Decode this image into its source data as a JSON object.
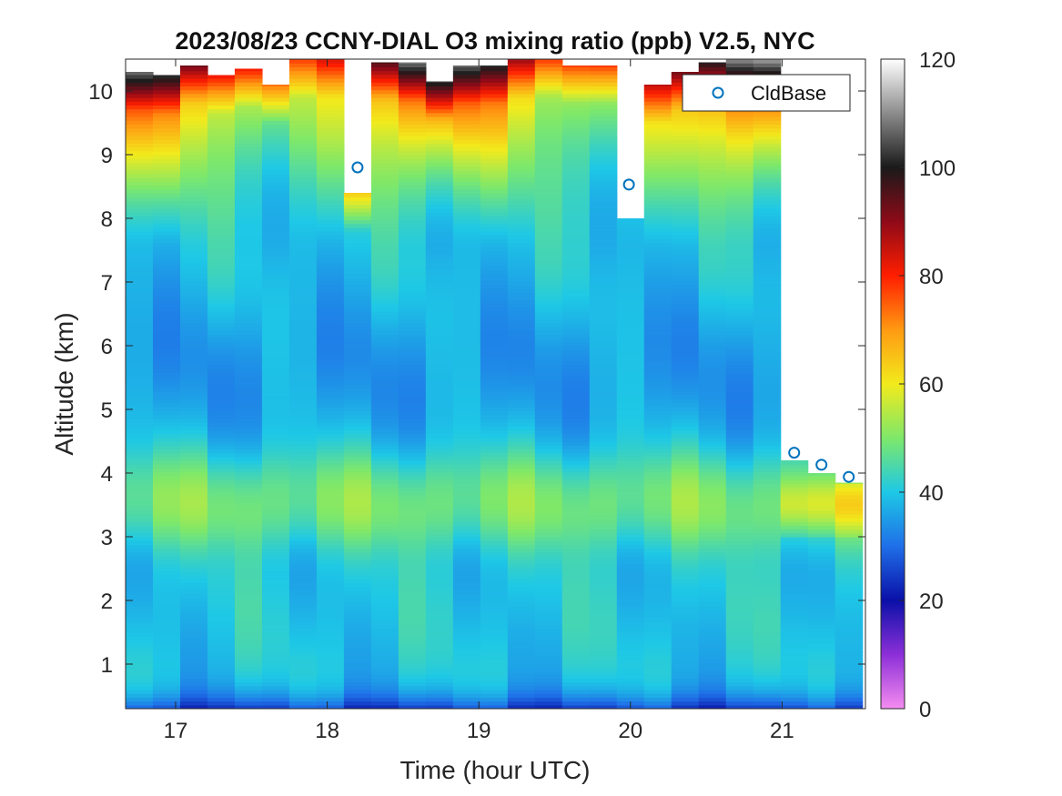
{
  "chart_data": {
    "type": "heatmap",
    "title": "2023/08/23 CCNY-DIAL O3 mixing ratio (ppb) V2.5, NYC",
    "xlabel": "Time (hour UTC)",
    "ylabel": "Altitude (km)",
    "xlim": [
      16.67,
      21.55
    ],
    "ylim": [
      0.3,
      10.5
    ],
    "x_ticks": [
      "17",
      "18",
      "19",
      "20",
      "21"
    ],
    "y_ticks": [
      "1",
      "2",
      "3",
      "4",
      "5",
      "6",
      "7",
      "8",
      "9",
      "10"
    ],
    "colorbar": {
      "range": [
        0,
        120
      ],
      "ticks": [
        "0",
        "20",
        "40",
        "60",
        "80",
        "100",
        "120"
      ]
    },
    "columns": [
      {
        "t": 16.76,
        "top": 10.3
      },
      {
        "t": 16.94,
        "top": 10.25
      },
      {
        "t": 17.12,
        "top": 10.4
      },
      {
        "t": 17.3,
        "top": 10.25
      },
      {
        "t": 17.48,
        "top": 10.35
      },
      {
        "t": 17.66,
        "top": 10.1
      },
      {
        "t": 17.84,
        "top": 10.5
      },
      {
        "t": 18.02,
        "top": 10.5
      },
      {
        "t": 18.2,
        "top": 8.4
      },
      {
        "t": 18.38,
        "top": 10.45
      },
      {
        "t": 18.56,
        "top": 10.45
      },
      {
        "t": 18.74,
        "top": 10.15
      },
      {
        "t": 18.92,
        "top": 10.4
      },
      {
        "t": 19.1,
        "top": 10.4
      },
      {
        "t": 19.28,
        "top": 10.5
      },
      {
        "t": 19.46,
        "top": 10.5
      },
      {
        "t": 19.64,
        "top": 10.4
      },
      {
        "t": 19.82,
        "top": 10.4
      },
      {
        "t": 20.0,
        "top": 8.0
      },
      {
        "t": 20.18,
        "top": 10.1
      },
      {
        "t": 20.36,
        "top": 10.3
      },
      {
        "t": 20.54,
        "top": 10.45
      },
      {
        "t": 20.72,
        "top": 10.5
      },
      {
        "t": 20.9,
        "top": 10.5
      },
      {
        "t": 21.08,
        "top": 4.2
      },
      {
        "t": 21.26,
        "top": 4.0
      },
      {
        "t": 21.44,
        "top": 3.85
      }
    ],
    "series": [
      {
        "name": "CldBase",
        "marker": "circle",
        "color": "#0072BD",
        "points": [
          {
            "x": 18.2,
            "y": 8.8
          },
          {
            "x": 19.99,
            "y": 8.53
          },
          {
            "x": 21.08,
            "y": 4.32
          },
          {
            "x": 21.26,
            "y": 4.13
          },
          {
            "x": 21.44,
            "y": 3.94
          }
        ]
      }
    ],
    "legend_position": "top-right"
  }
}
